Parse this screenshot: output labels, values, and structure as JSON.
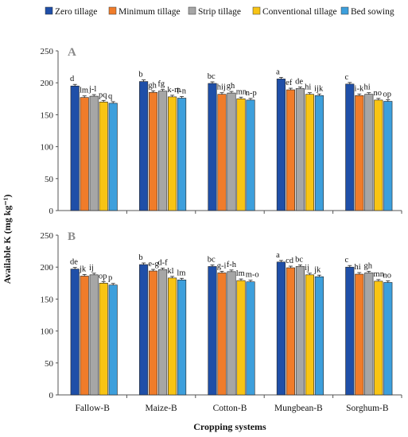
{
  "chart_data": {
    "type": "bar",
    "legend_position": "top",
    "ylabel": "Available K (mg kg⁻¹)",
    "xlabel": "Cropping systems",
    "ylim": [
      0,
      250
    ],
    "yticks": [
      0,
      50,
      100,
      150,
      200,
      250
    ],
    "series": [
      {
        "name": "Zero tillage",
        "color": "#1f4fa8"
      },
      {
        "name": "Minimum tillage",
        "color": "#f07c2a"
      },
      {
        "name": "Strip tillage",
        "color": "#a6a6a6"
      },
      {
        "name": "Conventional tillage",
        "color": "#f8c414"
      },
      {
        "name": "Bed sowing",
        "color": "#3d9fdc"
      }
    ],
    "panels": [
      {
        "label": "A",
        "categories": [
          "",
          "",
          "",
          "",
          ""
        ],
        "values": [
          [
            195,
            177,
            179,
            170,
            168
          ],
          [
            202,
            185,
            187,
            178,
            176
          ],
          [
            199,
            182,
            184,
            175,
            173
          ],
          [
            206,
            189,
            191,
            182,
            180
          ],
          [
            198,
            180,
            182,
            173,
            171
          ]
        ],
        "letters": [
          [
            "d",
            "lm",
            "j-l",
            "pq",
            "q"
          ],
          [
            "b",
            "gh",
            "fg",
            "k-m",
            "l-n"
          ],
          [
            "bc",
            "hij",
            "gh",
            "mn",
            "n-p"
          ],
          [
            "a",
            "ef",
            "de",
            "hi",
            "ijk"
          ],
          [
            "c",
            "i-k",
            "hi",
            "no",
            "op"
          ]
        ]
      },
      {
        "label": "B",
        "categories": [
          "Fallow-B",
          "Maize-B",
          "Cotton-B",
          "Mungbean-B",
          "Sorghum-B"
        ],
        "values": [
          [
            197,
            186,
            188,
            175,
            172
          ],
          [
            204,
            194,
            196,
            183,
            180
          ],
          [
            201,
            191,
            193,
            179,
            177
          ],
          [
            208,
            199,
            201,
            188,
            185
          ],
          [
            200,
            189,
            191,
            178,
            176
          ]
        ],
        "letters": [
          [
            "de",
            "jk",
            "ij",
            "op",
            "p"
          ],
          [
            "b",
            "e-g",
            "d-f",
            "kl",
            "lm"
          ],
          [
            "bc",
            "g-i",
            "f-h",
            "lm",
            "m-o"
          ],
          [
            "a",
            "cd",
            "bc",
            "ij",
            "jk"
          ],
          [
            "c",
            "hi",
            "gh",
            "mn",
            "no"
          ]
        ]
      }
    ]
  }
}
